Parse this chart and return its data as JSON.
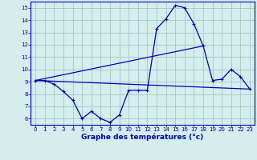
{
  "title": "Graphe des températures (°c)",
  "bg_color": "#d4eeee",
  "grid_color": "#aacccc",
  "line_color": "#0000bb",
  "xlim": [
    -0.5,
    23.5
  ],
  "ylim": [
    5.5,
    15.5
  ],
  "xticks": [
    0,
    1,
    2,
    3,
    4,
    5,
    6,
    7,
    8,
    9,
    10,
    11,
    12,
    13,
    14,
    15,
    16,
    17,
    18,
    19,
    20,
    21,
    22,
    23
  ],
  "yticks": [
    6,
    7,
    8,
    9,
    10,
    11,
    12,
    13,
    14,
    15
  ],
  "curve1_x": [
    0,
    1,
    2,
    3,
    4,
    5,
    6,
    7,
    8,
    9,
    10,
    11,
    12,
    13,
    14,
    15,
    16,
    17,
    18,
    19,
    20,
    21,
    22,
    23
  ],
  "curve1_y": [
    9.1,
    9.1,
    8.8,
    8.2,
    7.5,
    6.0,
    6.6,
    6.0,
    5.7,
    6.3,
    8.3,
    8.3,
    8.3,
    13.3,
    14.1,
    15.2,
    15.0,
    13.7,
    11.9,
    9.1,
    9.2,
    10.0,
    9.4,
    8.4
  ],
  "curve2_x": [
    0,
    23
  ],
  "curve2_y": [
    9.1,
    8.4
  ],
  "curve3_x": [
    0,
    18
  ],
  "curve3_y": [
    9.1,
    11.9
  ]
}
